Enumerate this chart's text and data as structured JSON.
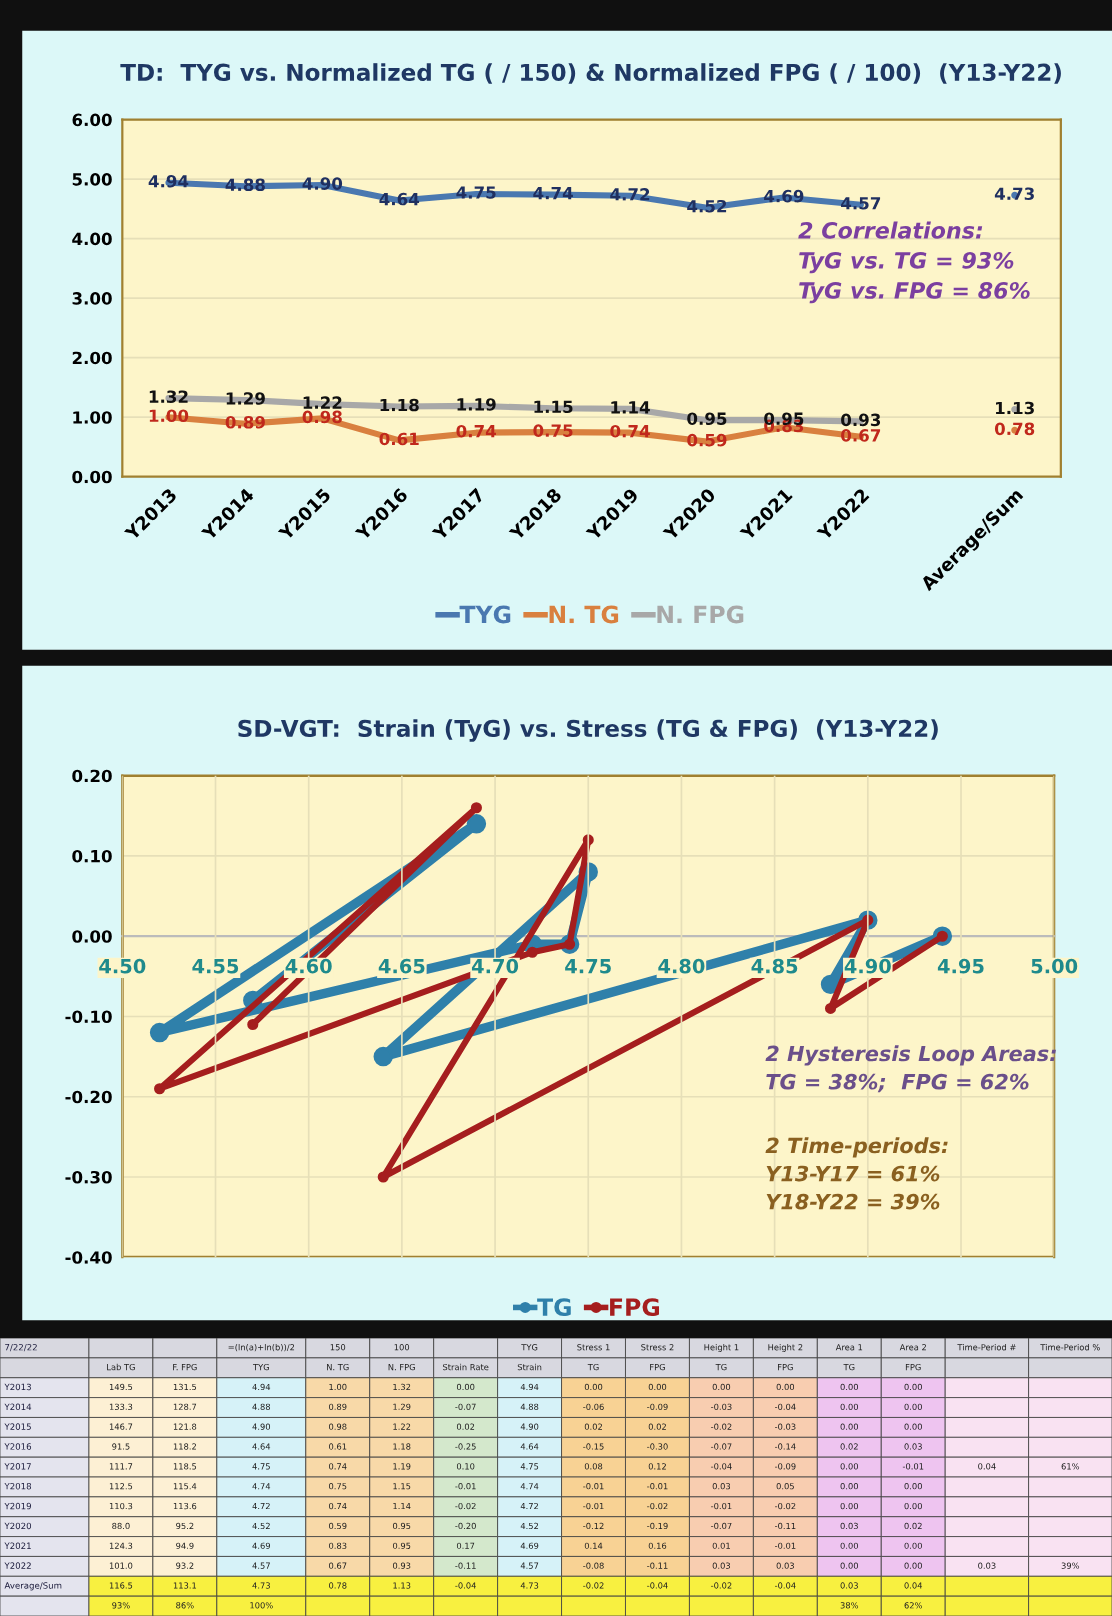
{
  "chart_data": [
    {
      "type": "line",
      "title": "TD:  TYG vs. Normalized TG ( / 150) & Normalized FPG ( / 100)  (Y13-Y22)",
      "categories": [
        "Y2013",
        "Y2014",
        "Y2015",
        "Y2016",
        "Y2017",
        "Y2018",
        "Y2019",
        "Y2020",
        "Y2021",
        "Y2022",
        null,
        "Average/Sum"
      ],
      "series": [
        {
          "name": "TYG",
          "color": "#4a78b0",
          "values": [
            4.94,
            4.88,
            4.9,
            4.64,
            4.75,
            4.74,
            4.72,
            4.52,
            4.69,
            4.57,
            null,
            4.73
          ],
          "value_labels": [
            "4.94",
            "4.88",
            "4.90",
            "4.64",
            "4.75",
            "4.74",
            "4.72",
            "4.52",
            "4.69",
            "4.57",
            null,
            "4.73"
          ]
        },
        {
          "name": "N. TG",
          "color": "#d9803f",
          "values": [
            1.0,
            0.89,
            0.98,
            0.61,
            0.74,
            0.75,
            0.74,
            0.59,
            0.83,
            0.67,
            null,
            0.78
          ],
          "value_labels": [
            "1.00",
            "0.89",
            "0.98",
            "0.61",
            "0.74",
            "0.75",
            "0.74",
            "0.59",
            "0.83",
            "0.67",
            null,
            "0.78"
          ]
        },
        {
          "name": "N. FPG",
          "color": "#a8a8a8",
          "values": [
            1.32,
            1.29,
            1.22,
            1.18,
            1.19,
            1.15,
            1.14,
            0.95,
            0.95,
            0.93,
            null,
            1.13
          ],
          "value_labels": [
            "1.32",
            "1.29",
            "1.22",
            "1.18",
            "1.19",
            "1.15",
            "1.14",
            "0.95",
            "0.95",
            "0.93",
            null,
            "1.13"
          ]
        }
      ],
      "ylim": [
        0,
        6
      ],
      "yticks": [
        {
          "value": 0,
          "label": "0.00"
        },
        {
          "value": 1,
          "label": "1.00"
        },
        {
          "value": 2,
          "label": "2.00"
        },
        {
          "value": 3,
          "label": "3.00"
        },
        {
          "value": 4,
          "label": "4.00"
        },
        {
          "value": 5,
          "label": "5.00"
        },
        {
          "value": 6,
          "label": "6.00"
        }
      ],
      "grid": "y",
      "legend": "bottom",
      "annotations": [
        "2 Correlations:\nTyG vs. TG = 93%\nTyG vs. FPG = 86%"
      ]
    },
    {
      "type": "line",
      "title": "SD-VGT:  Strain (TyG) vs. Stress (TG & FPG)  (Y13-Y22)",
      "series": [
        {
          "name": "TG",
          "color": "#2f80aa",
          "x": [
            4.94,
            4.88,
            4.9,
            4.64,
            4.75,
            4.74,
            4.72,
            4.52,
            4.69,
            4.57
          ],
          "values": [
            0.0,
            -0.06,
            0.02,
            -0.15,
            0.08,
            -0.01,
            -0.01,
            -0.12,
            0.14,
            -0.08
          ]
        },
        {
          "name": "FPG",
          "color": "#a51e1e",
          "x": [
            4.94,
            4.88,
            4.9,
            4.64,
            4.75,
            4.74,
            4.72,
            4.52,
            4.69,
            4.57
          ],
          "values": [
            0.0,
            -0.09,
            0.02,
            -0.3,
            0.12,
            -0.01,
            -0.02,
            -0.19,
            0.16,
            -0.11
          ]
        }
      ],
      "xlim": [
        4.5,
        5.0
      ],
      "xticks": [
        {
          "value": 4.5,
          "label": "4.50"
        },
        {
          "value": 4.55,
          "label": "4.55"
        },
        {
          "value": 4.6,
          "label": "4.60"
        },
        {
          "value": 4.65,
          "label": "4.65"
        },
        {
          "value": 4.7,
          "label": "4.70"
        },
        {
          "value": 4.75,
          "label": "4.75"
        },
        {
          "value": 4.8,
          "label": "4.80"
        },
        {
          "value": 4.85,
          "label": "4.85"
        },
        {
          "value": 4.9,
          "label": "4.90"
        },
        {
          "value": 4.95,
          "label": "4.95"
        },
        {
          "value": 5.0,
          "label": "5.00"
        }
      ],
      "ylim": [
        -0.4,
        0.2
      ],
      "yticks": [
        {
          "value": -0.4,
          "label": "-0.40"
        },
        {
          "value": -0.3,
          "label": "-0.30"
        },
        {
          "value": -0.2,
          "label": "-0.20"
        },
        {
          "value": -0.1,
          "label": "-0.10"
        },
        {
          "value": 0,
          "label": "0.00"
        },
        {
          "value": 0.1,
          "label": "0.10"
        },
        {
          "value": 0.2,
          "label": "0.20"
        }
      ],
      "grid": true,
      "legend": "bottom",
      "marker": "circle",
      "annotations": [
        "2 Hysteresis Loop Areas:\nTG = 38%;  FPG = 62%",
        "2 Time-periods:\nY13-Y17 = 61%\nY18-Y22 = 39%"
      ]
    },
    {
      "type": "other",
      "colors": [
        "#e4e4ee",
        "#fdf0d4",
        "#fdf0d4",
        "#d6f2f8",
        "#f8d9a8",
        "#f8d9a8",
        "#d4e8cc",
        "#d6f2f8",
        "#f8d294",
        "#f8d294",
        "#f8cdb0",
        "#f8cdb0",
        "#eec4f0",
        "#eec4f0",
        "#f9e2f2",
        "#f9e2f2"
      ],
      "cell_labels": [
        [
          "7/22/22",
          null,
          null,
          "=(ln(a)+ln(b))/2",
          "150",
          "100",
          null,
          "TYG",
          "Stress 1",
          "Stress 2",
          "Height 1",
          "Height 2",
          "Area 1",
          "Area 2",
          "Time-Period #",
          "Time-Period %"
        ],
        [
          null,
          "Lab TG",
          "F. FPG",
          "TYG",
          "N. TG",
          "N. FPG",
          "Strain Rate",
          "Strain",
          "TG",
          "FPG",
          "TG",
          "FPG",
          "TG",
          "FPG",
          null,
          null
        ],
        [
          "Y2013",
          "149.5",
          "131.5",
          "4.94",
          "1.00",
          "1.32",
          "0.00",
          "4.94",
          "0.00",
          "0.00",
          "0.00",
          "0.00",
          "0.00",
          "0.00",
          null,
          null
        ],
        [
          "Y2014",
          "133.3",
          "128.7",
          "4.88",
          "0.89",
          "1.29",
          "-0.07",
          "4.88",
          "-0.06",
          "-0.09",
          "-0.03",
          "-0.04",
          "0.00",
          "0.00",
          null,
          null
        ],
        [
          "Y2015",
          "146.7",
          "121.8",
          "4.90",
          "0.98",
          "1.22",
          "0.02",
          "4.90",
          "0.02",
          "0.02",
          "-0.02",
          "-0.03",
          "0.00",
          "0.00",
          null,
          null
        ],
        [
          "Y2016",
          "91.5",
          "118.2",
          "4.64",
          "0.61",
          "1.18",
          "-0.25",
          "4.64",
          "-0.15",
          "-0.30",
          "-0.07",
          "-0.14",
          "0.02",
          "0.03",
          null,
          null
        ],
        [
          "Y2017",
          "111.7",
          "118.5",
          "4.75",
          "0.74",
          "1.19",
          "0.10",
          "4.75",
          "0.08",
          "0.12",
          "-0.04",
          "-0.09",
          "0.00",
          "-0.01",
          "0.04",
          "61%"
        ],
        [
          "Y2018",
          "112.5",
          "115.4",
          "4.74",
          "0.75",
          "1.15",
          "-0.01",
          "4.74",
          "-0.01",
          "-0.01",
          "0.03",
          "0.05",
          "0.00",
          "0.00",
          null,
          null
        ],
        [
          "Y2019",
          "110.3",
          "113.6",
          "4.72",
          "0.74",
          "1.14",
          "-0.02",
          "4.72",
          "-0.01",
          "-0.02",
          "-0.01",
          "-0.02",
          "0.00",
          "0.00",
          null,
          null
        ],
        [
          "Y2020",
          "88.0",
          "95.2",
          "4.52",
          "0.59",
          "0.95",
          "-0.20",
          "4.52",
          "-0.12",
          "-0.19",
          "-0.07",
          "-0.11",
          "0.03",
          "0.02",
          null,
          null
        ],
        [
          "Y2021",
          "124.3",
          "94.9",
          "4.69",
          "0.83",
          "0.95",
          "0.17",
          "4.69",
          "0.14",
          "0.16",
          "0.01",
          "-0.01",
          "0.00",
          "0.00",
          null,
          null
        ],
        [
          "Y2022",
          "101.0",
          "93.2",
          "4.57",
          "0.67",
          "0.93",
          "-0.11",
          "4.57",
          "-0.08",
          "-0.11",
          "0.03",
          "0.03",
          "0.00",
          "0.00",
          "0.03",
          "39%"
        ],
        [
          "Average/Sum",
          "116.5",
          "113.1",
          "4.73",
          "0.78",
          "1.13",
          "-0.04",
          "4.73",
          "-0.02",
          "-0.04",
          "-0.02",
          "-0.04",
          "0.03",
          "0.04",
          null,
          null
        ],
        [
          null,
          "93%",
          "86%",
          "100%",
          null,
          null,
          null,
          null,
          null,
          null,
          null,
          null,
          "38%",
          "62%",
          null,
          null
        ]
      ]
    }
  ]
}
